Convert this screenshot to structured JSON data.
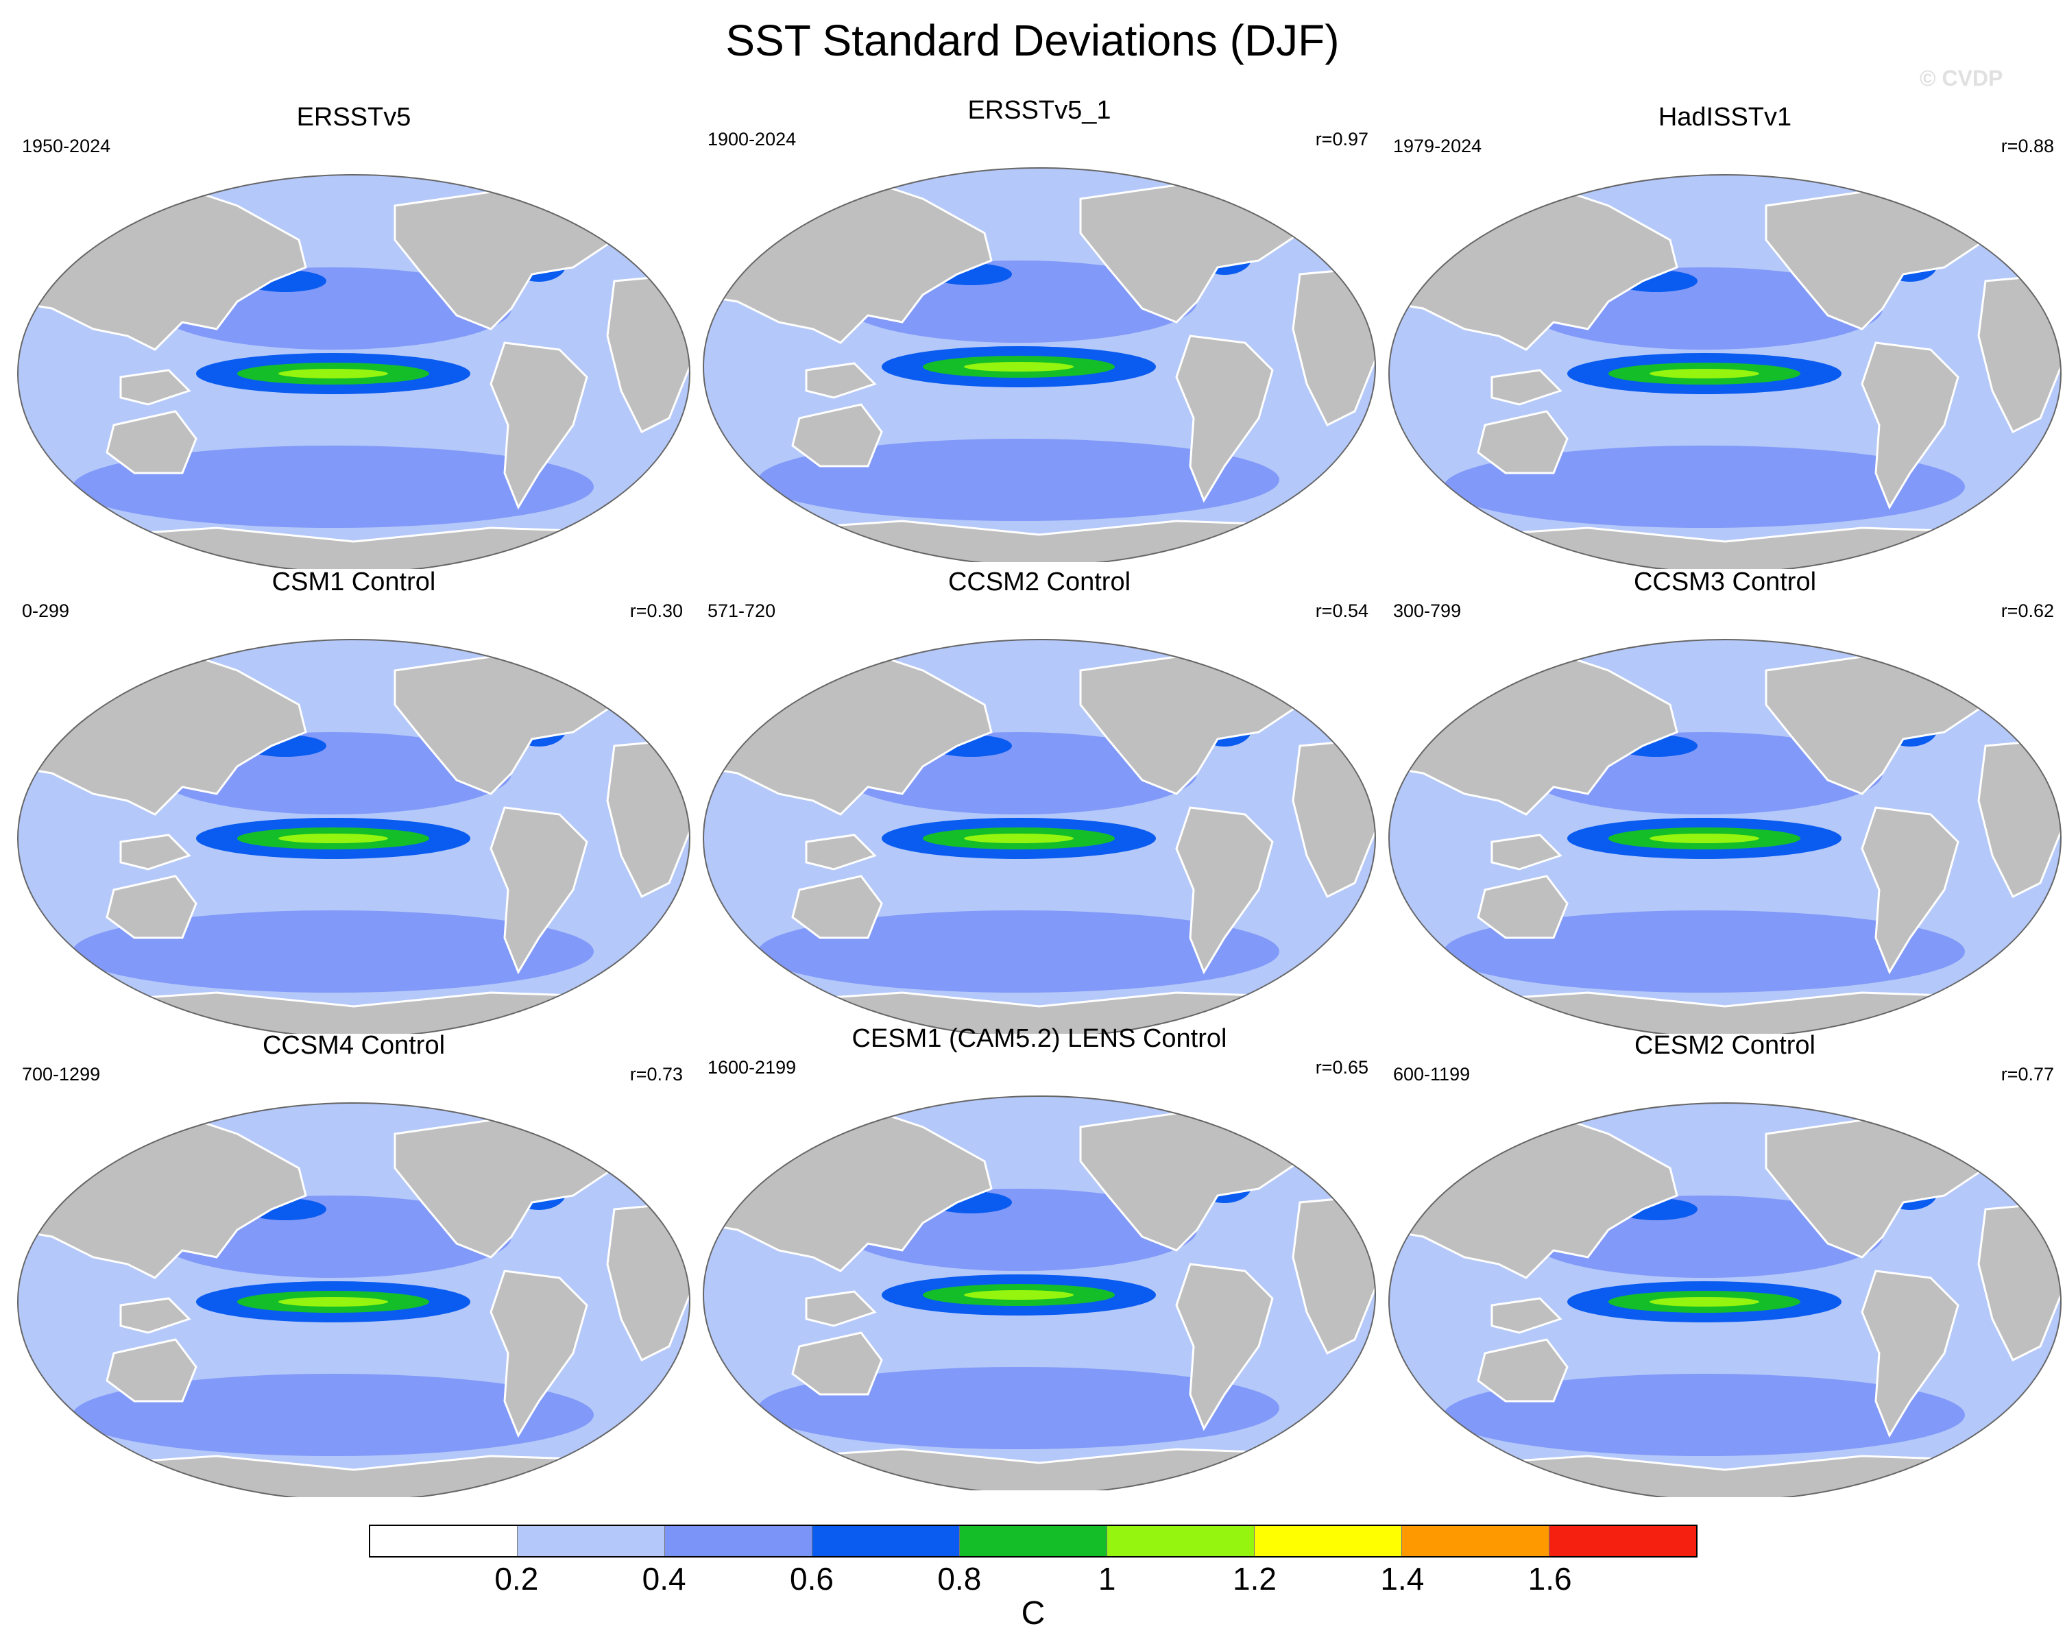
{
  "title": "SST Standard Deviations (DJF)",
  "watermark": "© CVDP",
  "panels": [
    {
      "name": "ERSSTv5",
      "period": "1950-2024",
      "r": ""
    },
    {
      "name": "ERSSTv5_1",
      "period": "1900-2024",
      "r": "r=0.97"
    },
    {
      "name": "HadISSTv1",
      "period": "1979-2024",
      "r": "r=0.88"
    },
    {
      "name": "CSM1 Control",
      "period": "0-299",
      "r": "r=0.30"
    },
    {
      "name": "CCSM2 Control",
      "period": "571-720",
      "r": "r=0.54"
    },
    {
      "name": "CCSM3 Control",
      "period": "300-799",
      "r": "r=0.62"
    },
    {
      "name": "CCSM4 Control",
      "period": "700-1299",
      "r": "r=0.73"
    },
    {
      "name": "CESM1 (CAM5.2) LENS Control",
      "period": "1600-2199",
      "r": "r=0.65"
    },
    {
      "name": "CESM2 Control",
      "period": "600-1199",
      "r": "r=0.77"
    }
  ],
  "colorbar": {
    "colors": [
      "#ffffff",
      "#b4c8fa",
      "#7b94f7",
      "#0a5cf0",
      "#14be28",
      "#96f50f",
      "#ffff00",
      "#ff9900",
      "#f52010"
    ],
    "ticks": [
      "0.2",
      "0.4",
      "0.6",
      "0.8",
      "1",
      "1.2",
      "1.4",
      "1.6"
    ],
    "units": "C"
  },
  "map_colors": {
    "land": "#bfbfbf",
    "ocean": "#b4c8fa",
    "coast": "#ffffff"
  }
}
